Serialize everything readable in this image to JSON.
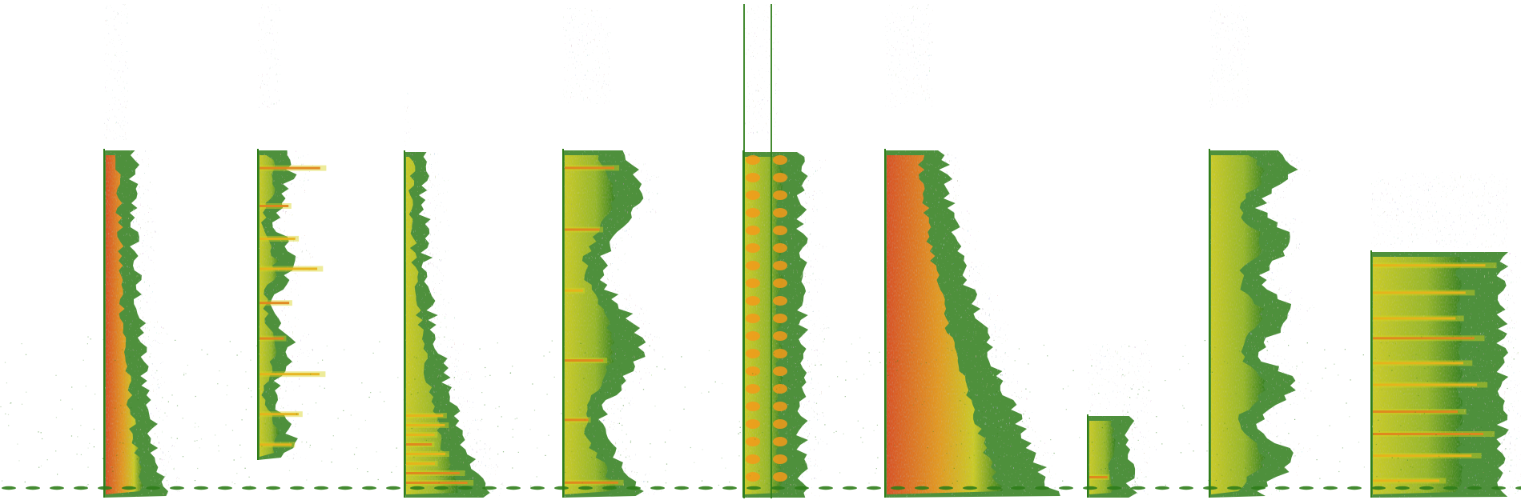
{
  "image": {
    "kind": "spectrogram-collage",
    "background": "#ffffff",
    "palette": {
      "low": "#2f7d1a",
      "mid_low": "#5fa526",
      "mid": "#d8d21f",
      "high": "#f39a1a",
      "peak": "#e8481e"
    }
  },
  "panels": [
    {
      "id": "p1",
      "style": "dense-tapering"
    },
    {
      "id": "p2",
      "style": "harmonic-stack"
    },
    {
      "id": "p3",
      "style": "low-fan"
    },
    {
      "id": "p4",
      "style": "banded-textured"
    },
    {
      "id": "p5",
      "style": "narrow-twin-columns"
    },
    {
      "id": "p6",
      "style": "wide-hot-block"
    },
    {
      "id": "p7",
      "style": "small-low-burst"
    },
    {
      "id": "p8",
      "style": "spiky-vertical"
    },
    {
      "id": "p9",
      "style": "rectangular-striped"
    }
  ]
}
